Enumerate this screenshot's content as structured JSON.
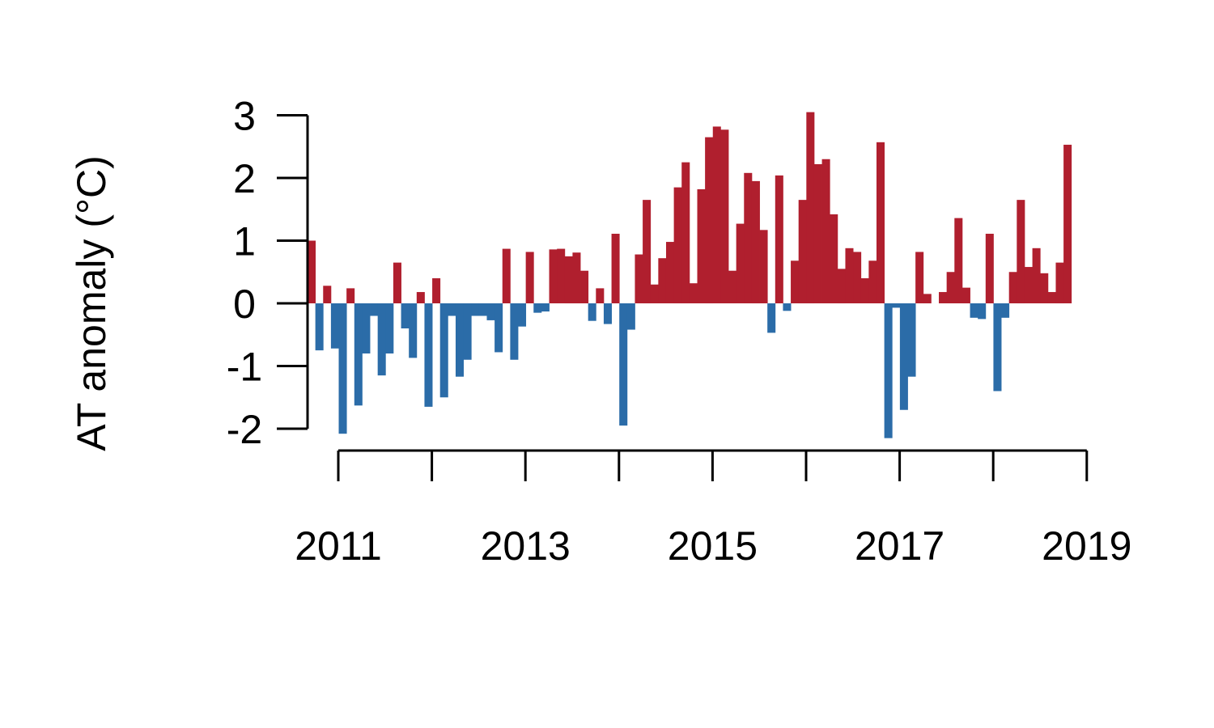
{
  "chart_data": {
    "type": "bar",
    "title": "",
    "xlabel": "",
    "ylabel": "AT anomaly (°C)",
    "x_start": "2010-11",
    "ylim": [
      -2.2,
      3.1
    ],
    "y_ticks": [
      3,
      2,
      1,
      0,
      -1,
      -2
    ],
    "y_tick_labels": [
      "3",
      "2",
      "1",
      "0",
      "-1",
      "-2"
    ],
    "x_ticks": [
      2011,
      2012,
      2013,
      2014,
      2015,
      2016,
      2017,
      2018,
      2019
    ],
    "x_tick_labels": [
      "2011",
      "",
      "2013",
      "",
      "2015",
      "",
      "2017",
      "",
      "2019"
    ],
    "grid": false,
    "legend": "none",
    "colors": {
      "positive": "#b01f2e",
      "negative": "#2b6ca8"
    },
    "categories": [
      "2010-11",
      "2010-12",
      "2011-01",
      "2011-02",
      "2011-03",
      "2011-04",
      "2011-05",
      "2011-06",
      "2011-07",
      "2011-08",
      "2011-09",
      "2011-10",
      "2011-11",
      "2011-12",
      "2012-01",
      "2012-02",
      "2012-03",
      "2012-04",
      "2012-05",
      "2012-06",
      "2012-07",
      "2012-08",
      "2012-09",
      "2012-10",
      "2012-11",
      "2012-12",
      "2013-01",
      "2013-02",
      "2013-03",
      "2013-04",
      "2013-05",
      "2013-06",
      "2013-07",
      "2013-08",
      "2013-09",
      "2013-10",
      "2013-11",
      "2013-12",
      "2014-01",
      "2014-02",
      "2014-03",
      "2014-04",
      "2014-05",
      "2014-06",
      "2014-07",
      "2014-08",
      "2014-09",
      "2014-10",
      "2014-11",
      "2014-12",
      "2015-01",
      "2015-02",
      "2015-03",
      "2015-04",
      "2015-05",
      "2015-06",
      "2015-07",
      "2015-08",
      "2015-09",
      "2015-10",
      "2015-11",
      "2015-12",
      "2016-01",
      "2016-02",
      "2016-03",
      "2016-04",
      "2016-05",
      "2016-06",
      "2016-07",
      "2016-08",
      "2016-09",
      "2016-10",
      "2016-11",
      "2016-12",
      "2017-01",
      "2017-02",
      "2017-03",
      "2017-04",
      "2017-05",
      "2017-06",
      "2017-07",
      "2017-08",
      "2017-09",
      "2017-10",
      "2017-11",
      "2017-12",
      "2018-01",
      "2018-02",
      "2018-03",
      "2018-04",
      "2018-05",
      "2018-06",
      "2018-07",
      "2018-08",
      "2018-09",
      "2018-10",
      "2018-11",
      "2018-12"
    ],
    "values": [
      1.0,
      -0.75,
      0.28,
      -0.72,
      -2.08,
      0.24,
      -1.63,
      -0.8,
      -0.2,
      -1.15,
      -0.8,
      0.65,
      -0.4,
      -0.87,
      0.18,
      -1.65,
      0.4,
      -1.5,
      -0.2,
      -1.17,
      -0.9,
      -0.2,
      -0.2,
      -0.27,
      -0.78,
      0.87,
      -0.9,
      -0.37,
      0.82,
      -0.15,
      -0.13,
      0.86,
      0.87,
      0.75,
      0.81,
      0.52,
      -0.28,
      0.24,
      -0.33,
      1.11,
      -1.95,
      -0.42,
      0.78,
      1.65,
      0.3,
      0.72,
      0.98,
      1.85,
      2.25,
      0.32,
      1.82,
      2.65,
      2.82,
      2.77,
      0.52,
      1.27,
      2.08,
      1.95,
      1.17,
      -0.47,
      2.04,
      -0.12,
      0.68,
      1.65,
      3.05,
      2.22,
      2.3,
      1.42,
      0.55,
      0.88,
      0.82,
      0.4,
      0.68,
      2.57,
      -2.15,
      -0.07,
      -1.7,
      -1.17,
      0.82,
      0.15,
      0.0,
      0.18,
      0.5,
      1.36,
      0.25,
      -0.23,
      -0.25,
      1.11,
      -1.4,
      -0.23,
      0.5,
      1.65,
      0.58,
      0.88,
      0.48,
      0.18,
      0.65,
      2.53
    ]
  }
}
